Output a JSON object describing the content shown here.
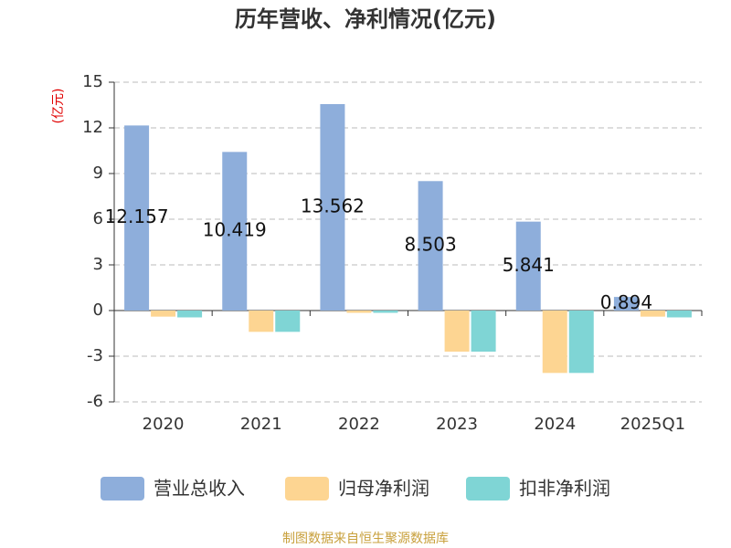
{
  "chart_data": {
    "type": "bar",
    "title": "历年营收、净利情况(亿元)",
    "y_label": "(亿元)",
    "categories": [
      "2020",
      "2021",
      "2022",
      "2023",
      "2024",
      "2025Q1"
    ],
    "series": [
      {
        "name": "营业总收入",
        "color": "#8eaedb",
        "values": [
          12.157,
          10.419,
          13.562,
          8.503,
          5.841,
          0.894
        ],
        "data_labels": true
      },
      {
        "name": "归母净利润",
        "color": "#fdd592",
        "values": [
          -0.4,
          -1.4,
          -0.15,
          -2.7,
          -4.1,
          -0.4
        ]
      },
      {
        "name": "扣非净利润",
        "color": "#7fd5d5",
        "values": [
          -0.45,
          -1.4,
          -0.15,
          -2.7,
          -4.1,
          -0.45
        ]
      }
    ],
    "ylim": [
      -6,
      15
    ],
    "yticks": [
      -6,
      -3,
      0,
      3,
      6,
      9,
      12,
      15
    ],
    "grid": true,
    "legend": "bottom",
    "source": "制图数据来自恒生聚源数据库"
  }
}
